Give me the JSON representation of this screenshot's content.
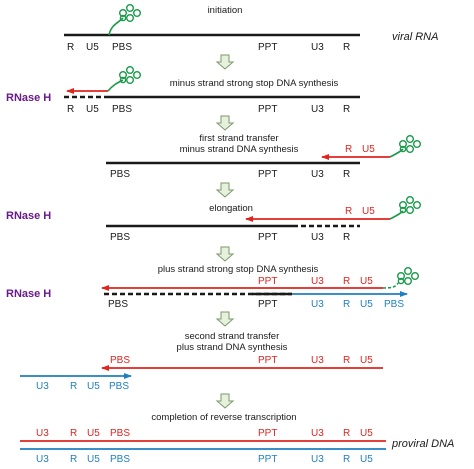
{
  "colors": {
    "black": "#1a1a1a",
    "red": "#e0241f",
    "blue": "#1f7fc0",
    "green": "#1a9a4a",
    "purple": "#6a1b8a",
    "arrow_outline": "#7a9a6a",
    "arrow_fill": "#e7f0dd"
  },
  "side_labels": {
    "viral_rna": "viral RNA",
    "proviral_dna": "proviral DNA"
  },
  "rnase_h": "RNase H",
  "steps": [
    {
      "title": "initiation"
    },
    {
      "title": "minus strand strong stop DNA synthesis"
    },
    {
      "title": "first strand transfer",
      "subtitle": "minus strand  DNA synthesis"
    },
    {
      "title": "elongation"
    },
    {
      "title": "plus strand strong stop DNA synthesis"
    },
    {
      "title": "second strand transfer",
      "subtitle": "plus strand  DNA synthesis"
    },
    {
      "title": "completion of reverse transcription"
    }
  ],
  "regions": {
    "R": "R",
    "U5": "U5",
    "PBS": "PBS",
    "PPT": "PPT",
    "U3": "U3"
  },
  "icons": [
    "trna-cloverleaf-icon",
    "down-arrow-icon"
  ]
}
